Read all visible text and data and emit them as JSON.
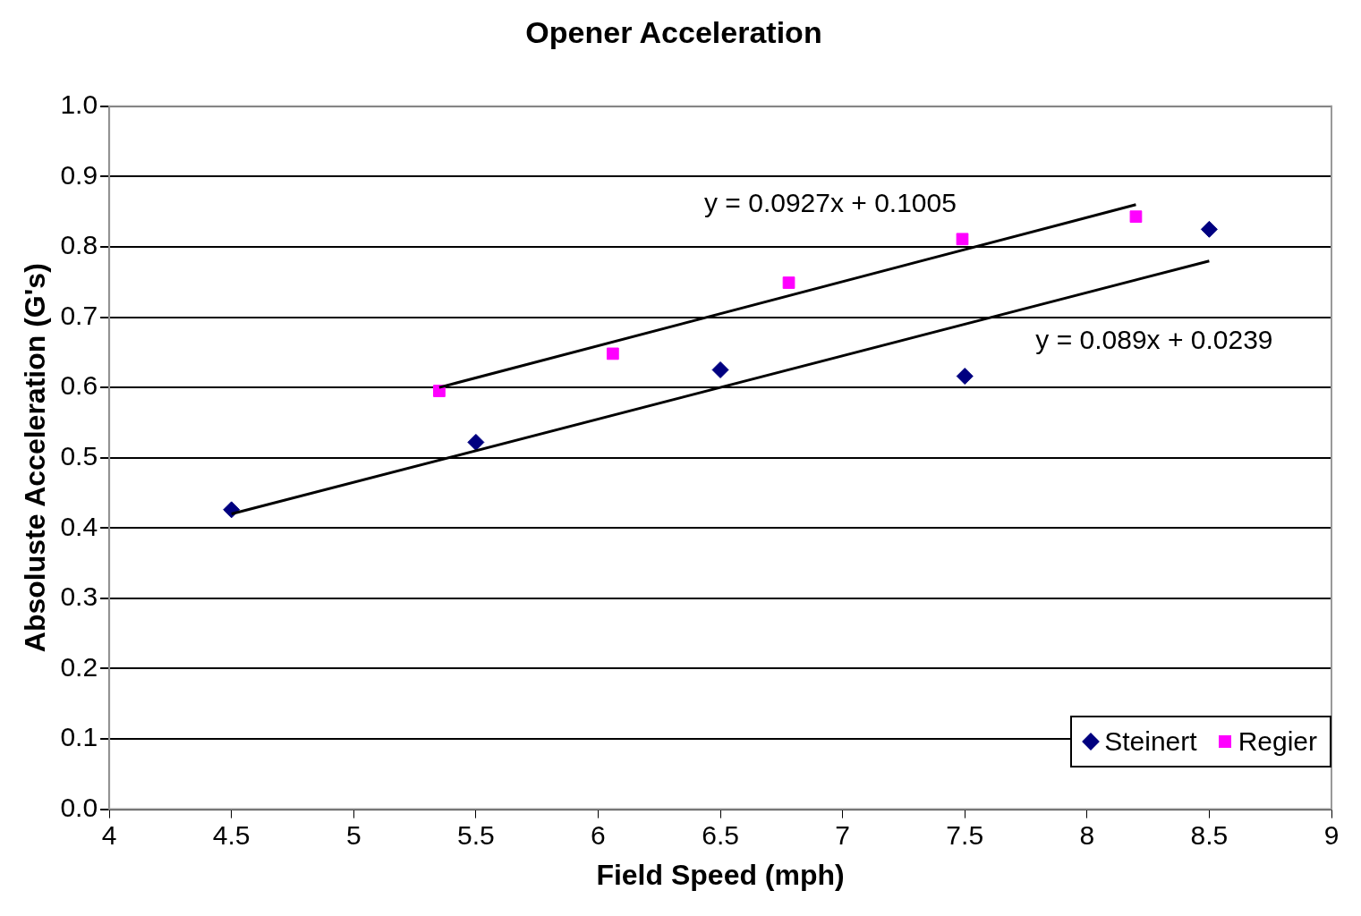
{
  "chart_data": {
    "type": "scatter",
    "title": "Opener Acceleration",
    "xlabel": "Field Speed (mph)",
    "ylabel": "Absoluste Acceleration (G's)",
    "xlim": [
      4,
      9
    ],
    "xticks": [
      4,
      4.5,
      5,
      5.5,
      6,
      6.5,
      7,
      7.5,
      8,
      8.5,
      9
    ],
    "ylim": [
      0,
      1
    ],
    "yticks": [
      {
        "value": 0,
        "label": "0.0"
      },
      {
        "value": 0.1,
        "label": "0.1"
      },
      {
        "value": 0.2,
        "label": "0.2"
      },
      {
        "value": 0.3,
        "label": "0.3"
      },
      {
        "value": 0.4,
        "label": "0.4"
      },
      {
        "value": 0.5,
        "label": "0.5"
      },
      {
        "value": 0.6,
        "label": "0.6"
      },
      {
        "value": 0.7,
        "label": "0.7"
      },
      {
        "value": 0.8,
        "label": "0.8"
      },
      {
        "value": 0.9,
        "label": "0.9"
      },
      {
        "value": 1,
        "label": "1.0"
      }
    ],
    "grid": "y",
    "legend": "bottom right",
    "series": [
      {
        "name": "Steinert",
        "marker": "diamond",
        "color": "#000080",
        "x": [
          4.5,
          5.5,
          6.5,
          7.5,
          8.5
        ],
        "values": [
          0.426,
          0.522,
          0.625,
          0.616,
          0.825
        ]
      },
      {
        "name": "Regier",
        "marker": "square",
        "color": "#ff00ff",
        "x": [
          5.35,
          6.06,
          6.78,
          7.49,
          8.2
        ],
        "values": [
          0.595,
          0.648,
          0.749,
          0.811,
          0.843
        ]
      },
      {
        "type": "line",
        "marker": "none",
        "color": "#000000",
        "x": [
          5.35,
          8.2
        ],
        "values": [
          0.6,
          0.86
        ]
      },
      {
        "type": "line",
        "marker": "none",
        "color": "#000000",
        "x": [
          4.5,
          8.5
        ],
        "values": [
          0.42,
          0.78
        ]
      }
    ],
    "annotations": [
      "y = 0.0927x + 0.1005",
      "y = 0.089x + 0.0239"
    ]
  }
}
